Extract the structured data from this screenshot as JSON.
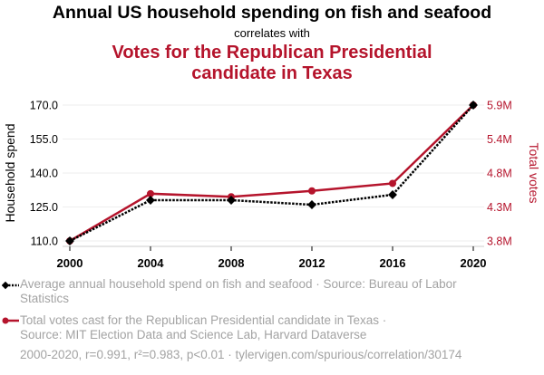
{
  "header": {
    "title": "Annual US household spending on fish and seafood",
    "connector": "correlates with",
    "subtitle_line1": "Votes for the Republican Presidential",
    "subtitle_line2": "candidate in Texas"
  },
  "colors": {
    "series1": "#000000",
    "series2": "#b5142c",
    "grid": "#eeeeee",
    "muted_text": "#a3a3a3"
  },
  "chart_data": {
    "type": "line",
    "title": "Annual US household spending on fish and seafood correlates with Votes for the Republican Presidential candidate in Texas",
    "x": [
      2000,
      2004,
      2008,
      2012,
      2016,
      2020
    ],
    "xlabel": "",
    "x_ticks": [
      "2000",
      "2004",
      "2008",
      "2012",
      "2016",
      "2020"
    ],
    "xlim": [
      2000,
      2020
    ],
    "y_left": {
      "label": "Household spend",
      "ticks": [
        "110.0",
        "125.0",
        "140.0",
        "155.0",
        "170.0"
      ],
      "ylim": [
        110,
        170
      ]
    },
    "y_right": {
      "label": "Total votes",
      "ticks": [
        "3.8M",
        "4.3M",
        "4.8M",
        "5.4M",
        "5.9M"
      ],
      "ylim": [
        3799639,
        5890347
      ]
    },
    "grid": true,
    "series": [
      {
        "name": "Average annual household spend on fish and seafood · Source: Bureau of Labor Statistics",
        "axis": "left",
        "style": "dotted",
        "marker": "diamond",
        "values": [
          110,
          128,
          128,
          126,
          130.4,
          170
        ]
      },
      {
        "name": "Total votes cast for the Republican Presidential candidate in Texas · Source: MIT Election Data and Science Lab, Harvard Dataverse",
        "axis": "right",
        "style": "solid",
        "marker": "circle",
        "values": [
          3799639,
          4526917,
          4479328,
          4569843,
          4685047,
          5890347
        ]
      }
    ],
    "legend_position": "bottom"
  },
  "legend": {
    "series1": "Average annual household spend on fish and seafood · Source: Bureau of Labor Statistics",
    "series2_line1": "Total votes cast for the Republican Presidential candidate in Texas ·",
    "series2_line2": "Source: MIT Election Data and Science Lab, Harvard Dataverse"
  },
  "footer": {
    "stats": "2000-2020, r=0.991, r²=0.983, p<0.01 · tylervigen.com/spurious/correlation/30174"
  }
}
